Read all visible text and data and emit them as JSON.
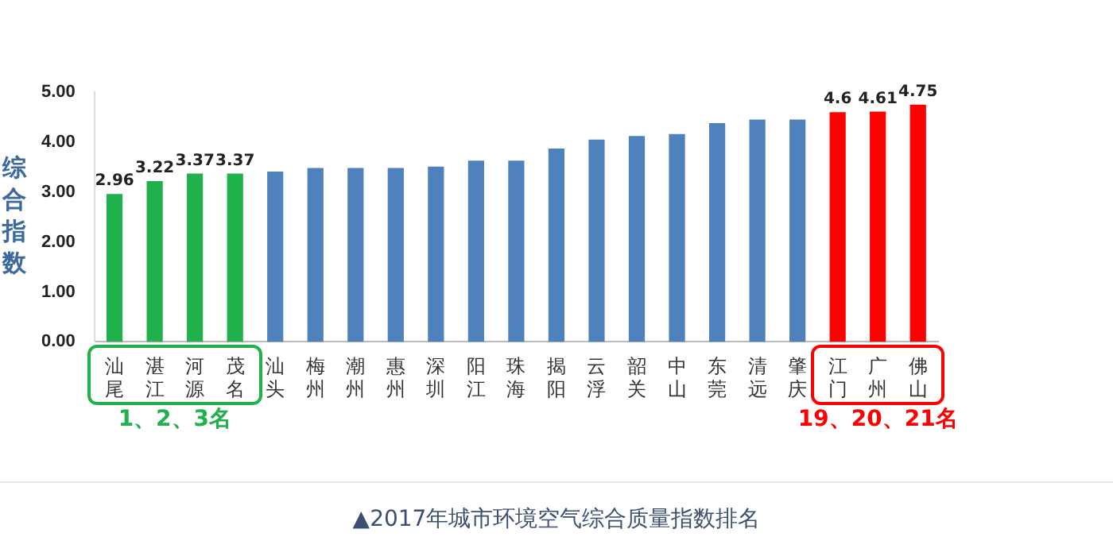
{
  "chart_data": {
    "type": "bar",
    "ylabel": "综合指数",
    "categories": [
      "汕尾",
      "湛江",
      "河源",
      "茂名",
      "汕头",
      "梅州",
      "潮州",
      "惠州",
      "深圳",
      "阳江",
      "珠海",
      "揭阳",
      "云浮",
      "韶关",
      "中山",
      "东莞",
      "清远",
      "肇庆",
      "江门",
      "广州",
      "佛山"
    ],
    "values": [
      2.96,
      3.22,
      3.37,
      3.37,
      3.41,
      3.48,
      3.48,
      3.48,
      3.51,
      3.63,
      3.63,
      3.87,
      4.05,
      4.12,
      4.16,
      4.38,
      4.45,
      4.45,
      4.6,
      4.61,
      4.75
    ],
    "value_labels": [
      "2.96",
      "3.22",
      "3.37",
      "3.37",
      null,
      null,
      null,
      null,
      null,
      null,
      null,
      null,
      null,
      null,
      null,
      null,
      null,
      null,
      "4.6",
      "4.61",
      "4.75"
    ],
    "colors": [
      "#21b14c",
      "#21b14c",
      "#21b14c",
      "#21b14c",
      "#4f81bd",
      "#4f81bd",
      "#4f81bd",
      "#4f81bd",
      "#4f81bd",
      "#4f81bd",
      "#4f81bd",
      "#4f81bd",
      "#4f81bd",
      "#4f81bd",
      "#4f81bd",
      "#4f81bd",
      "#4f81bd",
      "#4f81bd",
      "#ff0000",
      "#ff0000",
      "#ff0000"
    ],
    "ylim": [
      0,
      5
    ],
    "yticks": [
      {
        "value": 0,
        "label": "0.00"
      },
      {
        "value": 1,
        "label": "1.00"
      },
      {
        "value": 2,
        "label": "2.00"
      },
      {
        "value": 3,
        "label": "3.00"
      },
      {
        "value": 4,
        "label": "4.00"
      },
      {
        "value": 5,
        "label": "5.00"
      }
    ],
    "grid": false,
    "legend": false,
    "annotations": [
      "1、2、3名",
      "19、20、21名",
      "▲2017年城市环境空气综合质量指数排名"
    ]
  }
}
